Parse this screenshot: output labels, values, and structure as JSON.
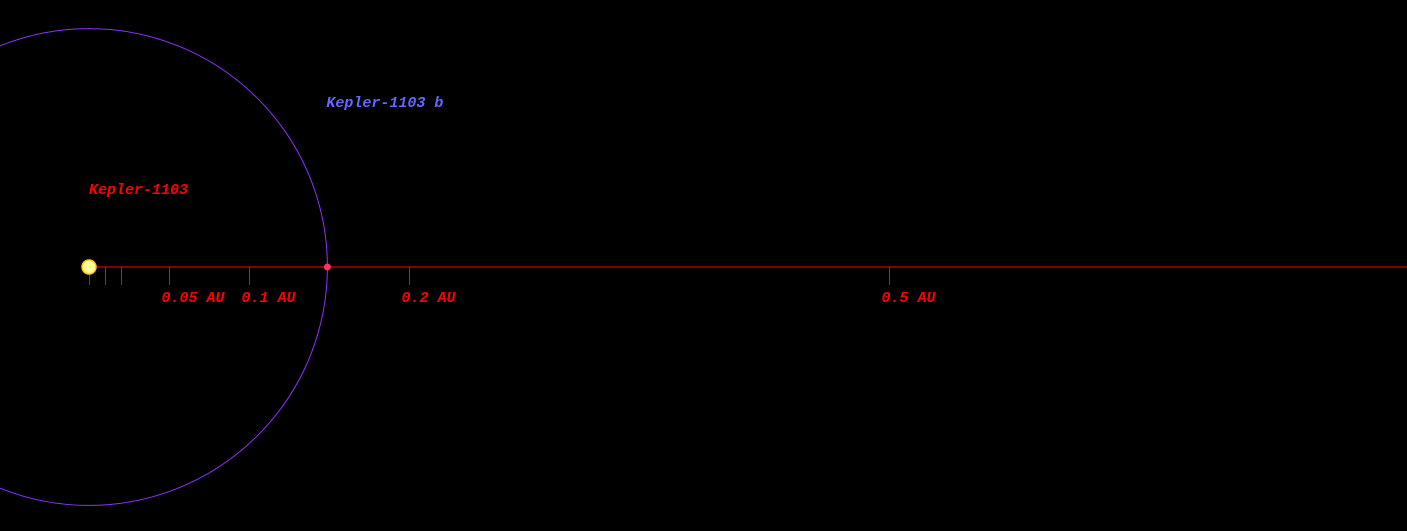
{
  "star": {
    "name": "Kepler-1103",
    "color": "#ff0000"
  },
  "planets": [
    {
      "name": "Kepler-1103 b",
      "a": 0.149,
      "color": "#6666ff",
      "orbit_color": "#8833ff"
    }
  ],
  "scale": {
    "ticks": [
      {
        "value": 0.05,
        "label": "0.05 AU"
      },
      {
        "value": 0.1,
        "label": "0.1 AU"
      },
      {
        "value": 0.2,
        "label": "0.2 AU"
      },
      {
        "value": 0.5,
        "label": "0.5 AU"
      }
    ],
    "minor_ticks": [
      0,
      0.01,
      0.02
    ],
    "color": "#ff0000"
  }
}
